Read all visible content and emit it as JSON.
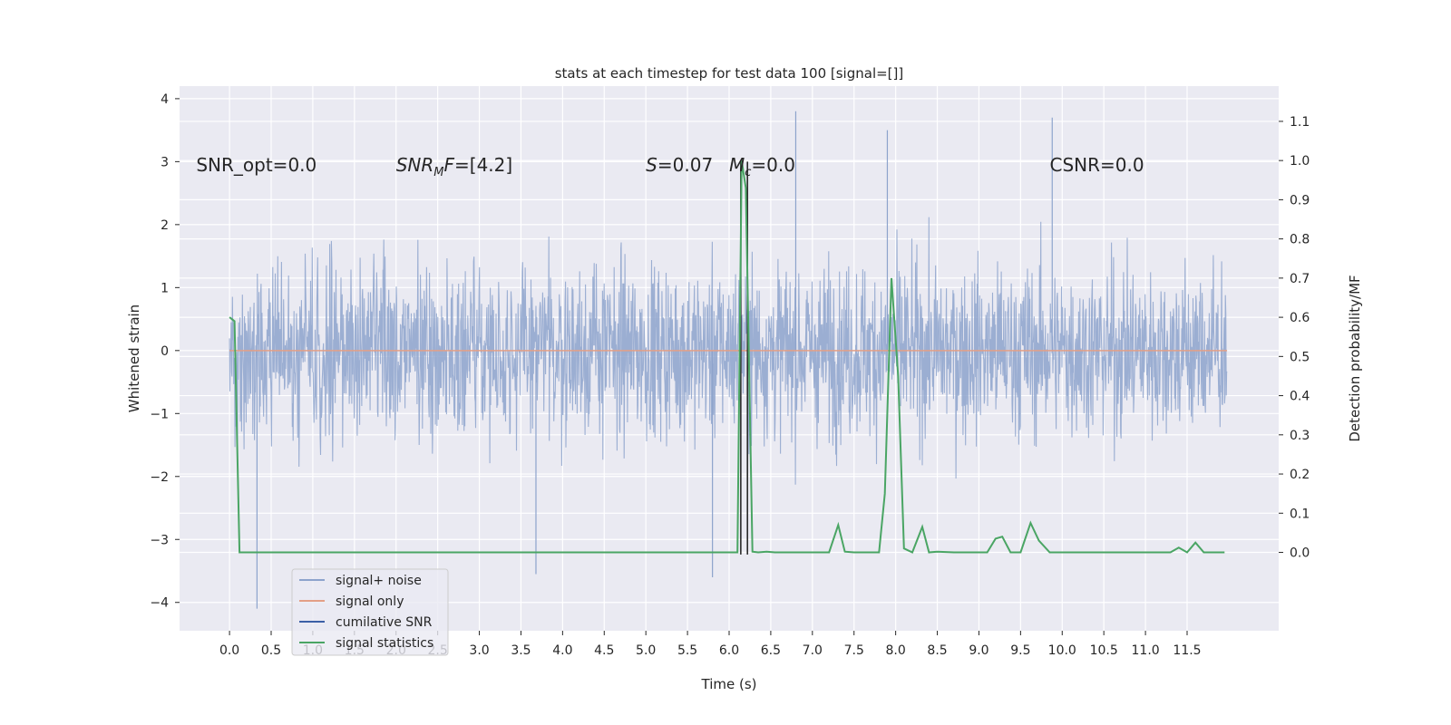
{
  "chart_data": {
    "type": "line",
    "title": "stats at each timestep for test data 100 [signal=[]]",
    "xlabel": "Time (s)",
    "ylabel": "Whitened strain",
    "ylabel_right": "Detection probability/MF",
    "xlim": [
      -0.6,
      12.6
    ],
    "ylim": [
      -4.45,
      4.2
    ],
    "ylim_right": [
      -0.2,
      1.19
    ],
    "x_ticks": [
      "0.0",
      "0.5",
      "1.0",
      "1.5",
      "2.0",
      "2.5",
      "3.0",
      "3.5",
      "4.0",
      "4.5",
      "5.0",
      "5.5",
      "6.0",
      "6.5",
      "7.0",
      "7.5",
      "8.0",
      "8.5",
      "9.0",
      "9.5",
      "10.0",
      "10.5",
      "11.0",
      "11.5"
    ],
    "y_ticks_left": [
      "−4",
      "−3",
      "−2",
      "−1",
      "0",
      "1",
      "2",
      "3",
      "4"
    ],
    "y_ticks_right": [
      "0.0",
      "0.1",
      "0.2",
      "0.3",
      "0.4",
      "0.5",
      "0.6",
      "0.7",
      "0.8",
      "0.9",
      "1.0",
      "1.1"
    ],
    "grid": true,
    "legend_position": "lower-left",
    "annotations": {
      "snr_opt": "SNR_opt=0.0",
      "snr_mf_prefix": "SNR",
      "snr_mf_sub": "M",
      "snr_mf_mid": "F",
      "snr_mf_suffix": "=[4.2]",
      "s_var": "S",
      "s_val": "=0.07",
      "mc_var": "M",
      "mc_sub": "c",
      "mc_val": "=0.0",
      "csnr": "CSNR=0.0"
    },
    "series": [
      {
        "name": "signal+ noise",
        "color": "#8da3cc",
        "axis": "left",
        "description_range": [
          -2.0,
          2.0
        ],
        "spikes_max": [
          {
            "x": 0.33,
            "y": -4.1
          },
          {
            "x": 3.68,
            "y": -3.55
          },
          {
            "x": 5.8,
            "y": -3.6
          },
          {
            "x": 6.8,
            "y": 3.8
          },
          {
            "x": 9.88,
            "y": 3.7
          },
          {
            "x": 7.9,
            "y": 3.5
          }
        ]
      },
      {
        "name": "signal only",
        "color": "#e39f86",
        "axis": "left",
        "x": [
          0.0,
          11.98
        ],
        "y": [
          0.0,
          0.0
        ]
      },
      {
        "name": "cumilative SNR",
        "color": "#3b5fa6",
        "axis": "right",
        "x": [],
        "y": []
      },
      {
        "name": "signal statistics",
        "color": "#4aa564",
        "axis": "right",
        "x": [
          0.0,
          0.06,
          0.12,
          0.25,
          0.5,
          1.0,
          2.0,
          3.0,
          4.0,
          5.0,
          6.0,
          6.1,
          6.15,
          6.2,
          6.28,
          6.35,
          6.45,
          6.55,
          6.65,
          6.75,
          7.0,
          7.2,
          7.31,
          7.39,
          7.5,
          7.8,
          7.87,
          7.95,
          8.03,
          8.1,
          8.2,
          8.32,
          8.4,
          8.5,
          8.7,
          9.0,
          9.1,
          9.2,
          9.28,
          9.38,
          9.5,
          9.62,
          9.72,
          9.85,
          10.0,
          10.5,
          11.0,
          11.3,
          11.4,
          11.5,
          11.6,
          11.7,
          11.8,
          11.95
        ],
        "y": [
          0.6,
          0.59,
          0.0,
          0.0,
          0.0,
          0.0,
          0.0,
          0.0,
          0.0,
          0.0,
          0.0,
          0.0,
          1.0,
          0.93,
          0.002,
          0.0,
          0.002,
          0.0,
          0.0,
          0.0,
          0.0,
          0.0,
          0.07,
          0.002,
          0.0,
          0.0,
          0.15,
          0.7,
          0.45,
          0.01,
          0.0,
          0.065,
          0.0,
          0.002,
          0.0,
          0.0,
          0.0,
          0.035,
          0.04,
          0.0,
          0.0,
          0.075,
          0.03,
          0.0,
          0.0,
          0.0,
          0.0,
          0.0,
          0.012,
          0.0,
          0.025,
          0.0,
          0.0,
          0.0
        ]
      }
    ],
    "vertical_markers": [
      {
        "x": 6.14,
        "y_range_left": [
          -3.24,
          3.0
        ]
      },
      {
        "x": 6.22,
        "y_range_left": [
          -3.24,
          3.0
        ]
      }
    ]
  }
}
